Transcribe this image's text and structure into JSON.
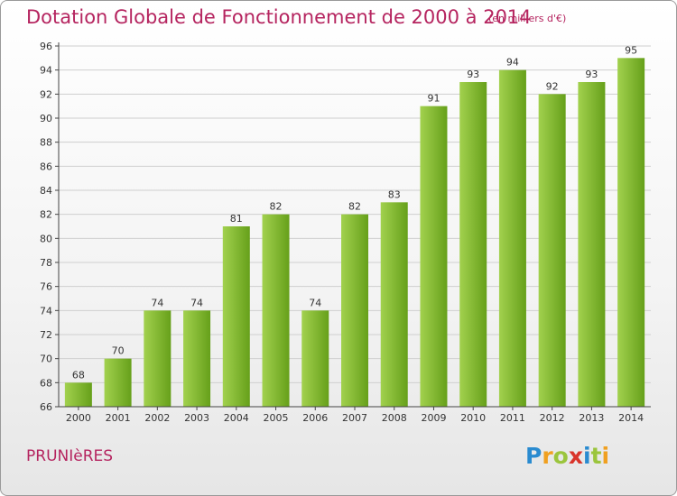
{
  "header": {
    "title": "Dotation Globale de Fonctionnement de 2000 à 2014",
    "unit_note": "(en milliers d'€)"
  },
  "commune_name": "PRUNIèRES",
  "logo": {
    "letters": [
      "P",
      "r",
      "o",
      "x",
      "i",
      "t",
      "i"
    ],
    "colors": [
      "#2a8bd0",
      "#f0a020",
      "#9bc53d",
      "#d9342b",
      "#2a8bd0",
      "#9bc53d",
      "#f0a020"
    ]
  },
  "colors": {
    "bar_light": "#a2d14e",
    "bar_dark": "#66a01a",
    "grid": "#cfcfcf",
    "axis": "#444444",
    "title": "#b5245f"
  },
  "chart_data": {
    "type": "bar",
    "title": "Dotation Globale de Fonctionnement de 2000 à 2014",
    "subtitle": "(en milliers d'€)",
    "xlabel": "",
    "ylabel": "",
    "categories": [
      "2000",
      "2001",
      "2002",
      "2003",
      "2004",
      "2005",
      "2006",
      "2007",
      "2008",
      "2009",
      "2010",
      "2011",
      "2012",
      "2013",
      "2014"
    ],
    "values": [
      68,
      70,
      74,
      74,
      81,
      82,
      74,
      82,
      83,
      91,
      93,
      94,
      92,
      93,
      95
    ],
    "ylim": [
      66,
      96
    ],
    "yticks": [
      66,
      68,
      70,
      72,
      74,
      76,
      78,
      80,
      82,
      84,
      86,
      88,
      90,
      92,
      94,
      96
    ],
    "grid": true,
    "legend": "none"
  }
}
